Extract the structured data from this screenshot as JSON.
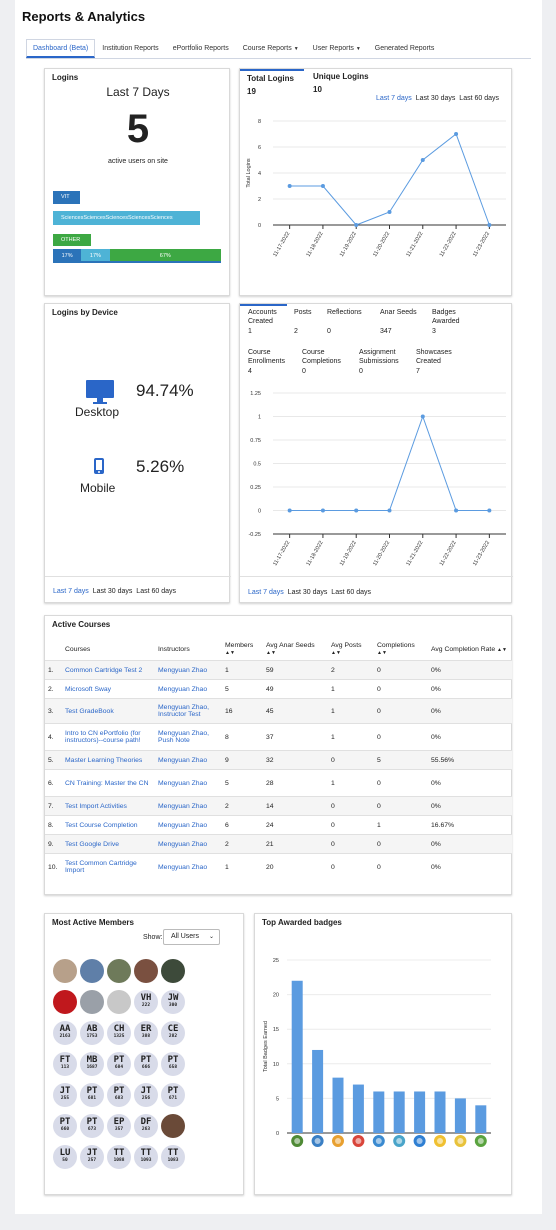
{
  "page": {
    "title": "Reports & Analytics"
  },
  "tabs": [
    {
      "label": "Dashboard (Beta)",
      "active": true,
      "dropdown": false
    },
    {
      "label": "Institution Reports",
      "active": false,
      "dropdown": false
    },
    {
      "label": "ePortfolio Reports",
      "active": false,
      "dropdown": false
    },
    {
      "label": "Course Reports",
      "active": false,
      "dropdown": true
    },
    {
      "label": "User Reports",
      "active": false,
      "dropdown": true
    },
    {
      "label": "Generated Reports",
      "active": false,
      "dropdown": false
    }
  ],
  "logins": {
    "title": "Logins",
    "period": "Last 7 Days",
    "count": "5",
    "caption": "active users on site",
    "tags": [
      "VIT",
      "SciencesSciencesSciencesSciencesSciences",
      "OTHER"
    ],
    "tag_colors": [
      "#2b73b9",
      "#4eb3d6",
      "#3da843"
    ],
    "stack": [
      {
        "label": "17%",
        "value": 17,
        "color": "#2b73b9"
      },
      {
        "label": "17%",
        "value": 17,
        "color": "#4eb3d6"
      },
      {
        "label": "67%",
        "value": 67,
        "color": "#3da843"
      }
    ]
  },
  "total_logins": {
    "tabs": [
      {
        "label": "Total Logins",
        "value": "19"
      },
      {
        "label": "Unique Logins",
        "value": "10"
      }
    ],
    "ranges": [
      "Last 7 days",
      "Last 30 days",
      "Last 60 days"
    ]
  },
  "devices": {
    "title": "Logins by Device",
    "items": [
      {
        "label": "Desktop",
        "value": "94.74%",
        "icon": "desktop-icon"
      },
      {
        "label": "Mobile",
        "value": "5.26%",
        "icon": "mobile-icon"
      }
    ],
    "ranges": [
      "Last 7 days",
      "Last 30 days",
      "Last 60 days"
    ]
  },
  "activity": {
    "stats_row1": [
      {
        "label": "Accounts Created",
        "value": "1"
      },
      {
        "label": "Posts",
        "value": "2"
      },
      {
        "label": "Reflections",
        "value": "0"
      },
      {
        "label": "Anar Seeds",
        "value": "347"
      },
      {
        "label": "Badges Awarded",
        "value": "3"
      }
    ],
    "stats_row2": [
      {
        "label": "Course Enrollments",
        "value": "4"
      },
      {
        "label": "Course Completions",
        "value": "0"
      },
      {
        "label": "Assignment Submissions",
        "value": "0"
      },
      {
        "label": "Showcases Created",
        "value": "7"
      }
    ],
    "ranges": [
      "Last 7 days",
      "Last 30 days",
      "Last 60 days"
    ]
  },
  "active_courses": {
    "title": "Active Courses",
    "columns": [
      "Courses",
      "Instructors",
      "Members",
      "Avg Anar Seeds",
      "Avg Posts",
      "Completions",
      "Avg Completion Rate"
    ],
    "rows": [
      {
        "n": "1.",
        "course": "Common Cartridge Test 2",
        "instructors": "Mengyuan Zhao",
        "members": "1",
        "seeds": "59",
        "posts": "2",
        "completions": "0",
        "rate": "0%"
      },
      {
        "n": "2.",
        "course": "Microsoft Sway",
        "instructors": "Mengyuan Zhao",
        "members": "5",
        "seeds": "49",
        "posts": "1",
        "completions": "0",
        "rate": "0%"
      },
      {
        "n": "3.",
        "course": "Test GradeBook",
        "instructors": "Mengyuan Zhao, Instructor Test",
        "members": "16",
        "seeds": "45",
        "posts": "1",
        "completions": "0",
        "rate": "0%"
      },
      {
        "n": "4.",
        "course": "Intro to CN ePortfolio (for instructors)--course path!",
        "instructors": "Mengyuan Zhao, Push Note",
        "members": "8",
        "seeds": "37",
        "posts": "1",
        "completions": "0",
        "rate": "0%"
      },
      {
        "n": "5.",
        "course": "Master Learning Theories",
        "instructors": "Mengyuan Zhao",
        "members": "9",
        "seeds": "32",
        "posts": "0",
        "completions": "5",
        "rate": "55.56%"
      },
      {
        "n": "6.",
        "course": "CN Training: Master the CN",
        "instructors": "Mengyuan Zhao",
        "members": "5",
        "seeds": "28",
        "posts": "1",
        "completions": "0",
        "rate": "0%"
      },
      {
        "n": "7.",
        "course": "Test Import Activities",
        "instructors": "Mengyuan Zhao",
        "members": "2",
        "seeds": "14",
        "posts": "0",
        "completions": "0",
        "rate": "0%"
      },
      {
        "n": "8.",
        "course": "Test Course Completion",
        "instructors": "Mengyuan Zhao",
        "members": "6",
        "seeds": "24",
        "posts": "0",
        "completions": "1",
        "rate": "16.67%"
      },
      {
        "n": "9.",
        "course": "Test Google Drive",
        "instructors": "Mengyuan Zhao",
        "members": "2",
        "seeds": "21",
        "posts": "0",
        "completions": "0",
        "rate": "0%"
      },
      {
        "n": "10.",
        "course": "Test Common Cartridge Import",
        "instructors": "Mengyuan Zhao",
        "members": "1",
        "seeds": "20",
        "posts": "0",
        "completions": "0",
        "rate": "0%"
      }
    ]
  },
  "members": {
    "title": "Most Active Members",
    "show_label": "Show:",
    "filter_value": "All Users",
    "avatars": [
      {
        "type": "photo",
        "color": "#b7a08a"
      },
      {
        "type": "photo",
        "color": "#5f7fa8"
      },
      {
        "type": "photo",
        "color": "#6e7a5a"
      },
      {
        "type": "photo",
        "color": "#7a5040"
      },
      {
        "type": "photo",
        "color": "#3d4a3a"
      },
      {
        "type": "photo",
        "color": "#c0181d"
      },
      {
        "type": "photo",
        "color": "#9aa0a8"
      },
      {
        "type": "photo",
        "color": "#c8c8c8"
      },
      {
        "initials": "VH",
        "num": "222"
      },
      {
        "initials": "JW",
        "num": "300"
      },
      {
        "initials": "AA",
        "num": "2163"
      },
      {
        "initials": "AB",
        "num": "1753"
      },
      {
        "initials": "CH",
        "num": "1325"
      },
      {
        "initials": "ER",
        "num": "388"
      },
      {
        "initials": "CE",
        "num": "282"
      },
      {
        "initials": "FT",
        "num": "113"
      },
      {
        "initials": "MB",
        "num": "1687"
      },
      {
        "initials": "PT",
        "num": "684"
      },
      {
        "initials": "PT",
        "num": "666"
      },
      {
        "initials": "PT",
        "num": "658"
      },
      {
        "initials": "JT",
        "num": "255"
      },
      {
        "initials": "PT",
        "num": "681"
      },
      {
        "initials": "PT",
        "num": "683"
      },
      {
        "initials": "JT",
        "num": "256"
      },
      {
        "initials": "PT",
        "num": "671"
      },
      {
        "initials": "PT",
        "num": "660"
      },
      {
        "initials": "PT",
        "num": "673"
      },
      {
        "initials": "EP",
        "num": "357"
      },
      {
        "initials": "DF",
        "num": "263"
      },
      {
        "type": "photo",
        "color": "#6a4a38"
      },
      {
        "initials": "LU",
        "num": "50"
      },
      {
        "initials": "JT",
        "num": "257"
      },
      {
        "initials": "TT",
        "num": "1088"
      },
      {
        "initials": "TT",
        "num": "1093"
      },
      {
        "initials": "TT",
        "num": "1083"
      }
    ]
  },
  "badges": {
    "title": "Top Awarded badges",
    "badge_colors": [
      "#4f8a35",
      "#3a7fc4",
      "#e8a030",
      "#d9453a",
      "#3a8ad0",
      "#49a4c9",
      "#2f7fd2",
      "#f0c030",
      "#e8c23a",
      "#5aa33f"
    ]
  },
  "chart_data": [
    {
      "type": "line",
      "title": "",
      "xlabel": "",
      "ylabel": "Total Logins",
      "x": [
        "11-17-2022",
        "11-18-2022",
        "11-19-2022",
        "11-20-2022",
        "11-21-2022",
        "11-22-2022",
        "11-23-2022"
      ],
      "series": [
        {
          "values": [
            3,
            3,
            0,
            1,
            5,
            7,
            0
          ]
        }
      ],
      "ylim": [
        0,
        8
      ],
      "yticks": [
        0,
        2,
        4,
        6,
        8
      ],
      "color": "#5b9be0"
    },
    {
      "type": "line",
      "title": "",
      "xlabel": "",
      "ylabel": "",
      "x": [
        "11-17-2022",
        "11-18-2022",
        "11-19-2022",
        "11-20-2022",
        "11-21-2022",
        "11-22-2022",
        "11-23-2022"
      ],
      "series": [
        {
          "values": [
            0,
            0,
            0,
            0,
            1,
            0,
            0
          ]
        }
      ],
      "ylim": [
        -0.25,
        1.25
      ],
      "yticks": [
        -0.25,
        0,
        0.25,
        0.5,
        0.75,
        1,
        1.25
      ],
      "color": "#5b9be0"
    },
    {
      "type": "bar",
      "title": "",
      "xlabel": "",
      "ylabel": "Total Badges Earned",
      "values": [
        22,
        12,
        8,
        7,
        6,
        6,
        6,
        6,
        5,
        4
      ],
      "ylim": [
        0,
        25
      ],
      "yticks": [
        0,
        5,
        10,
        15,
        20,
        25
      ],
      "color": "#5b9be0"
    }
  ]
}
